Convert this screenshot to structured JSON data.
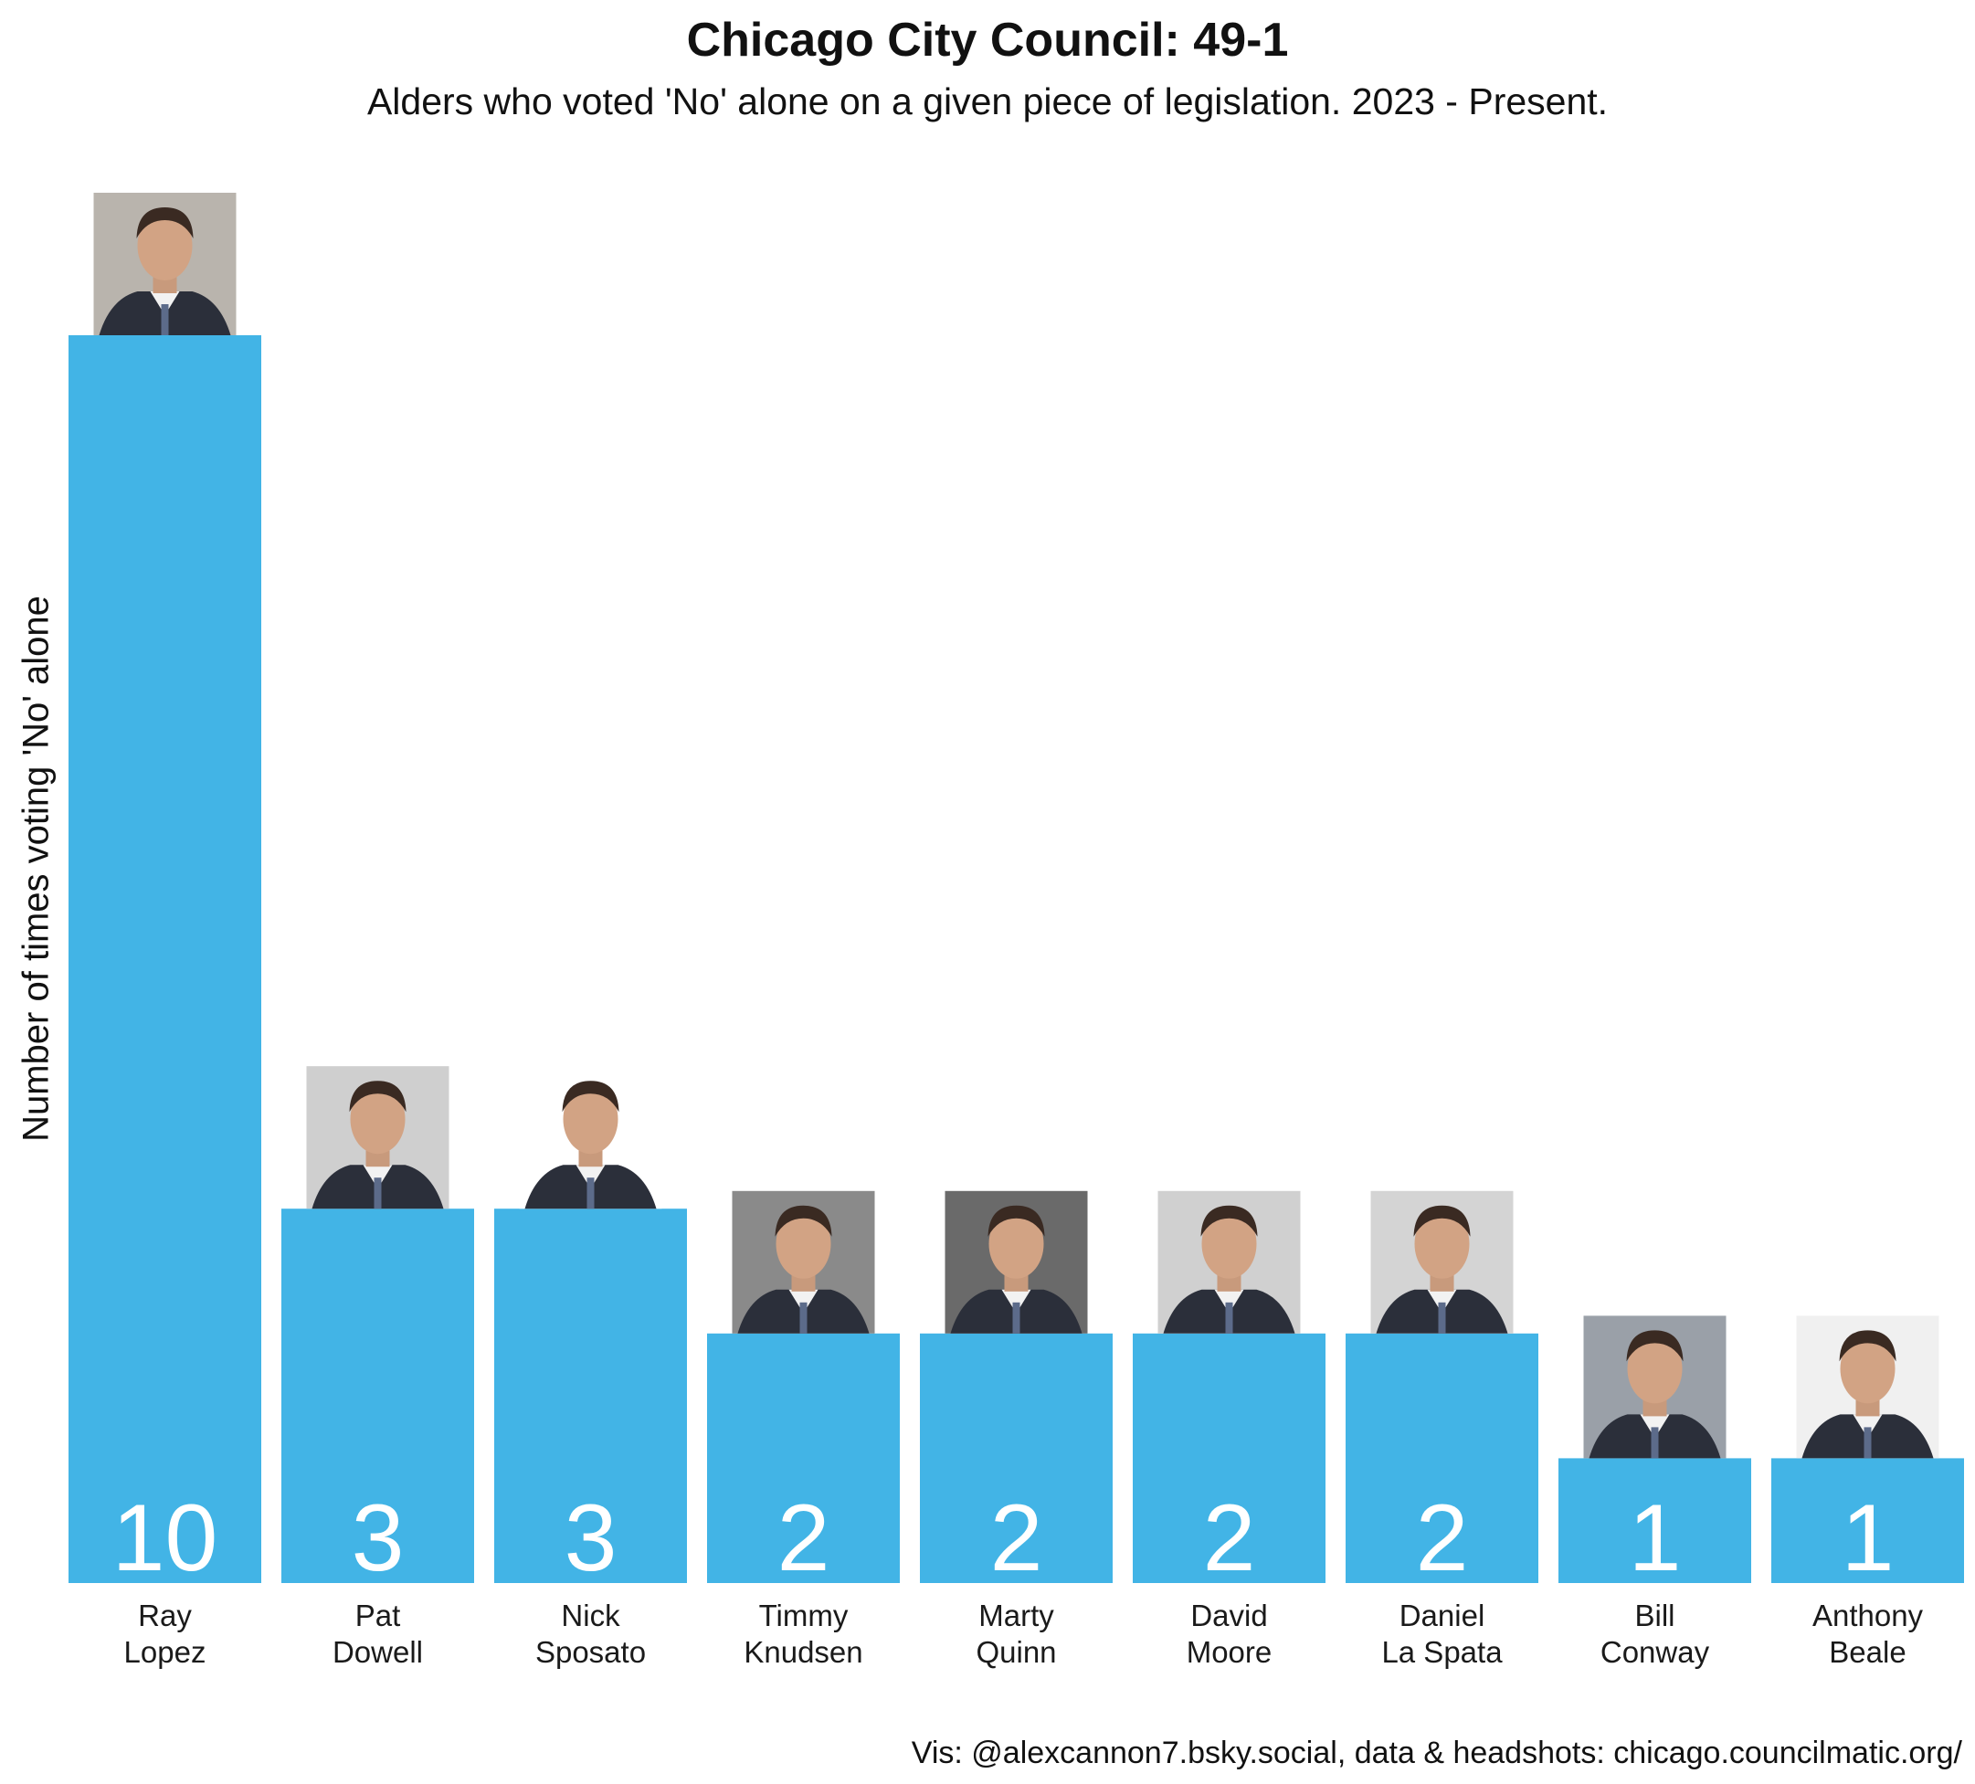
{
  "chart_data": {
    "type": "bar",
    "title": "Chicago City Council: 49-1",
    "subtitle": "Alders who voted 'No' alone on a given piece of legislation. 2023 - Present.",
    "xlabel": "",
    "ylabel": "Number of times voting 'No' alone",
    "categories": [
      [
        "Ray",
        "Lopez"
      ],
      [
        "Pat",
        "Dowell"
      ],
      [
        "Nick",
        "Sposato"
      ],
      [
        "Timmy",
        "Knudsen"
      ],
      [
        "Marty",
        "Quinn"
      ],
      [
        "David",
        "Moore"
      ],
      [
        "Daniel",
        "La Spata"
      ],
      [
        "Bill",
        "Conway"
      ],
      [
        "Anthony",
        "Beale"
      ]
    ],
    "values": [
      10,
      3,
      3,
      2,
      2,
      2,
      2,
      1,
      1
    ],
    "ylim": [
      0,
      10
    ],
    "grid": false,
    "bar_color": "#42b4e6",
    "value_label_color": "#ffffff",
    "headshot_icons": [
      "headshot-photo-icon"
    ],
    "caption": "Vis: @alexcannon7.bsky.social, data & headshots: chicago.councilmatic.org/"
  }
}
